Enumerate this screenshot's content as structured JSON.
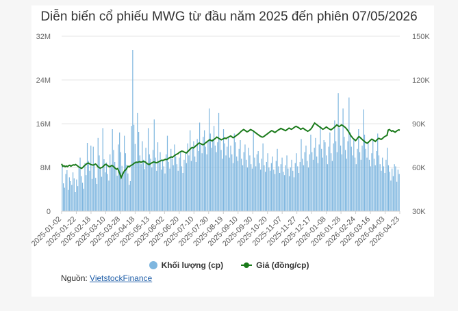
{
  "chart_data": {
    "type": "bar+line",
    "title": "Diễn biến cổ phiếu MWG từ đầu năm 2025 đến phiên 07/05/2026",
    "left_axis": {
      "ticks": [
        "0",
        "8M",
        "16M",
        "24M",
        "32M"
      ],
      "ylim": [
        0,
        32000000
      ]
    },
    "right_axis": {
      "ticks": [
        "30K",
        "60K",
        "90K",
        "120K",
        "150K"
      ],
      "ylim": [
        30000,
        150000
      ]
    },
    "x_ticks": [
      "2025-01-02",
      "2025-01-22",
      "2025-02-18",
      "2025-03-10",
      "2025-03-28",
      "2025-04-18",
      "2025-05-13",
      "2025-06-02",
      "2025-06-20",
      "2025-07-10",
      "2025-07-30",
      "2025-08-19",
      "2025-09-10",
      "2025-09-30",
      "2025-10-20",
      "2025-11-07",
      "2025-11-27",
      "2025-12-17",
      "2026-01-08",
      "2026-01-28",
      "2026-02-24",
      "2026-03-16",
      "2026-04-03",
      "2026-04-23"
    ],
    "series": [
      {
        "name": "Khối lượng (cp)",
        "axis": "left",
        "color": "#7eb6df",
        "values": [
          8.2,
          5.1,
          4.3,
          6.8,
          7.5,
          3.9,
          6.2,
          5.5,
          4.8,
          7.1,
          6.0,
          3.5,
          5.8,
          4.6,
          7.9,
          9.8,
          6.4,
          5.2,
          4.1,
          8.8,
          6.6,
          12.5,
          9.2,
          7.4,
          12.0,
          5.9,
          11.8,
          8.4,
          6.1,
          5.0,
          13.4,
          10.2,
          7.8,
          6.3,
          15.2,
          9.5,
          7.1,
          8.9,
          6.8,
          5.6,
          10.4,
          8.1,
          15.0,
          11.2,
          9.0,
          7.6,
          6.5,
          12.2,
          14.4,
          10.8,
          8.3,
          7.2,
          13.8,
          10.6,
          8.5,
          6.9,
          4.8,
          5.5,
          15.6,
          29.5,
          15.8,
          12.3,
          9.1,
          18.0,
          14.5,
          10.2,
          8.6,
          12.8,
          9.4,
          7.7,
          11.6,
          8.8,
          15.2,
          10.4,
          9.6,
          8.0,
          11.2,
          16.8,
          9.8,
          7.4,
          12.6,
          8.9,
          10.8,
          7.6,
          9.2,
          8.2,
          6.9,
          10.4,
          13.8,
          9.0,
          7.8,
          11.4,
          9.6,
          8.4,
          12.2,
          10.0,
          8.6,
          7.4,
          9.8,
          11.0,
          8.2,
          7.0,
          9.4,
          10.6,
          8.8,
          12.4,
          10.2,
          14.8,
          9.2,
          11.6,
          12.8,
          10.0,
          9.0,
          13.2,
          11.0,
          16.2,
          12.4,
          10.6,
          13.6,
          14.8,
          11.8,
          10.4,
          12.8,
          18.8,
          14.2,
          11.6,
          13.2,
          15.6,
          12.0,
          10.8,
          12.6,
          18.0,
          13.4,
          11.2,
          9.6,
          15.0,
          12.4,
          10.2,
          11.8,
          13.6,
          9.8,
          12.0,
          10.4,
          8.8,
          14.2,
          12.6,
          10.0,
          9.2,
          11.4,
          13.0,
          9.6,
          8.4,
          10.8,
          12.2,
          9.4,
          8.0,
          11.6,
          10.2,
          8.6,
          7.8,
          14.8,
          9.8,
          8.2,
          10.4,
          11.0,
          8.8,
          7.6,
          9.6,
          12.4,
          8.4,
          7.2,
          9.0,
          10.6,
          8.0,
          7.4,
          8.8,
          10.0,
          7.6,
          6.8,
          9.2,
          11.4,
          8.2,
          7.0,
          8.6,
          9.8,
          7.2,
          6.6,
          8.4,
          10.2,
          7.8,
          6.4,
          8.0,
          9.4,
          7.4,
          6.2,
          8.8,
          10.6,
          8.2,
          7.0,
          9.0,
          13.2,
          9.6,
          8.4,
          10.8,
          12.0,
          9.2,
          8.0,
          10.4,
          14.0,
          10.8,
          9.4,
          11.6,
          13.4,
          10.0,
          8.8,
          12.2,
          15.6,
          11.4,
          9.8,
          13.0,
          12.6,
          10.2,
          8.6,
          11.8,
          14.4,
          10.6,
          9.2,
          12.4,
          16.6,
          12.8,
          10.8,
          21.6,
          15.2,
          12.0,
          10.4,
          18.8,
          13.6,
          11.2,
          9.6,
          12.8,
          20.8,
          14.4,
          11.8,
          10.2,
          13.2,
          9.8,
          8.6,
          11.4,
          15.0,
          10.8,
          9.4,
          12.0,
          18.6,
          14.0,
          11.4,
          9.8,
          12.6,
          9.4,
          8.2,
          10.6,
          13.2,
          9.6,
          8.4,
          11.0,
          14.2,
          10.2,
          8.6,
          7.4,
          9.8,
          8.2,
          7.0,
          9.4,
          11.6,
          8.4,
          7.2,
          5.6,
          7.8,
          6.4,
          8.6,
          8.2,
          5.4,
          7.6,
          6.8
        ],
        "unit": "M cp"
      },
      {
        "name": "Giá (đồng/cp)",
        "axis": "right",
        "color": "#1a7a1a",
        "values": [
          62.5,
          60.8,
          61.2,
          60.5,
          61.0,
          60.6,
          61.2,
          61.5,
          60.9,
          61.4,
          61.8,
          61.6,
          62.0,
          61.5,
          60.9,
          60.2,
          59.8,
          59.4,
          59.9,
          60.8,
          61.5,
          62.2,
          62.8,
          63.0,
          62.5,
          62.0,
          61.8,
          61.6,
          61.9,
          62.4,
          61.8,
          60.6,
          60.0,
          59.6,
          59.8,
          60.2,
          61.0,
          61.8,
          62.2,
          61.6,
          61.0,
          60.5,
          60.8,
          61.4,
          61.0,
          60.2,
          59.4,
          58.8,
          59.2,
          57.6,
          55.6,
          53.0,
          54.8,
          56.4,
          57.8,
          58.4,
          59.6,
          60.8,
          60.4,
          61.2,
          61.6,
          62.0,
          62.8,
          63.2,
          63.6,
          63.4,
          63.8,
          64.0,
          63.6,
          63.8,
          64.2,
          64.0,
          63.6,
          62.8,
          62.4,
          62.0,
          62.6,
          63.0,
          63.4,
          63.8,
          63.6,
          63.2,
          63.4,
          63.8,
          64.2,
          64.6,
          65.0,
          64.8,
          65.2,
          65.6,
          65.4,
          65.8,
          66.4,
          66.8,
          67.2,
          67.0,
          67.6,
          68.2,
          68.8,
          69.2,
          69.6,
          70.4,
          70.8,
          71.2,
          71.0,
          70.6,
          70.2,
          70.0,
          70.8,
          71.6,
          72.4,
          73.2,
          73.8,
          73.4,
          74.0,
          74.8,
          75.4,
          76.2,
          76.8,
          76.4,
          76.0,
          75.6,
          75.8,
          76.6,
          77.2,
          77.8,
          78.4,
          79.0,
          78.6,
          78.2,
          78.8,
          79.4,
          80.0,
          80.8,
          80.4,
          79.8,
          79.4,
          79.0,
          79.4,
          79.8,
          80.2,
          79.8,
          80.4,
          80.8,
          81.2,
          81.6,
          81.0,
          80.4,
          80.8,
          81.4,
          82.0,
          82.6,
          83.2,
          84.0,
          84.8,
          85.4,
          86.0,
          85.6,
          85.0,
          84.4,
          84.8,
          85.4,
          86.0,
          85.6,
          85.2,
          84.6,
          84.0,
          83.4,
          82.8,
          82.2,
          81.6,
          81.2,
          80.8,
          81.0,
          81.6,
          82.2,
          82.8,
          83.4,
          84.0,
          84.6,
          85.2,
          85.0,
          84.4,
          84.0,
          84.6,
          85.2,
          85.8,
          86.2,
          86.8,
          86.4,
          86.0,
          85.6,
          85.2,
          85.8,
          86.4,
          87.0,
          86.6,
          86.2,
          86.6,
          87.2,
          87.8,
          88.2,
          87.8,
          87.4,
          86.8,
          86.2,
          86.6,
          87.0,
          86.4,
          85.8,
          85.4,
          84.8,
          85.2,
          85.8,
          86.6,
          87.8,
          89.2,
          90.4,
          89.8,
          89.2,
          88.6,
          88.0,
          87.4,
          86.8,
          86.2,
          86.6,
          87.2,
          87.8,
          87.2,
          86.6,
          86.2,
          85.8,
          86.4,
          87.0,
          87.6,
          88.4,
          89.2,
          88.6,
          88.0,
          88.6,
          89.2,
          88.8,
          88.2,
          87.6,
          86.8,
          85.8,
          84.6,
          83.2,
          81.8,
          80.8,
          79.8,
          79.2,
          78.4,
          79.2,
          80.4,
          81.2,
          80.6,
          79.8,
          79.0,
          78.4,
          77.6,
          77.0,
          76.6,
          77.2,
          78.0,
          78.8,
          79.4,
          79.0,
          78.4,
          77.8,
          78.6,
          79.4,
          80.0,
          79.6,
          79.2,
          79.8,
          80.6,
          81.2,
          81.6,
          82.0,
          85.6,
          86.0,
          85.4,
          84.8,
          85.2,
          84.6,
          84.2,
          84.8,
          85.4,
          85.8,
          85.6
        ],
        "unit": "K đồng"
      }
    ],
    "legend_placement": "bottom",
    "grid": true
  },
  "legend": {
    "volume_label": "Khối lượng (cp)",
    "price_label": "Giá (đồng/cp)"
  },
  "source": {
    "prefix": "Nguồn: ",
    "link_text": "VietstockFinance"
  },
  "colors": {
    "volume": "#7eb6df",
    "price": "#1a7a1a"
  }
}
